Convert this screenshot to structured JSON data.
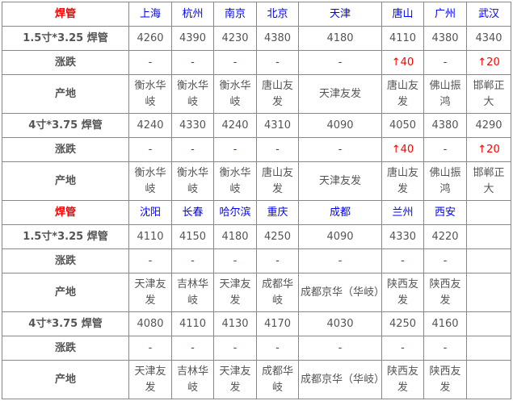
{
  "sections": [
    {
      "header": {
        "label": "焊管",
        "cities": [
          "上海",
          "杭州",
          "南京",
          "北京",
          "天津",
          "唐山",
          "广州",
          "武汉"
        ]
      },
      "rows": [
        {
          "label": "1.5寸*3.25 焊管",
          "type": "price",
          "values": [
            "4260",
            "4390",
            "4230",
            "4380",
            "4180",
            "4110",
            "4380",
            "4340"
          ]
        },
        {
          "label": "涨跌",
          "type": "change",
          "values": [
            "-",
            "-",
            "-",
            "-",
            "-",
            "↑40",
            "-",
            "↑20"
          ]
        },
        {
          "label": "产地",
          "type": "origin",
          "values": [
            "衡水华岐",
            "衡水华岐",
            "衡水华岐",
            "唐山友发",
            "天津友发",
            "唐山友发",
            "佛山振鸿",
            "邯郸正大"
          ]
        },
        {
          "label": "4寸*3.75 焊管",
          "type": "price",
          "values": [
            "4240",
            "4330",
            "4240",
            "4310",
            "4090",
            "4050",
            "4380",
            "4290"
          ]
        },
        {
          "label": "涨跌",
          "type": "change",
          "values": [
            "-",
            "-",
            "-",
            "-",
            "-",
            "↑40",
            "-",
            "↑20"
          ]
        },
        {
          "label": "产地",
          "type": "origin",
          "values": [
            "衡水华岐",
            "衡水华岐",
            "衡水华岐",
            "唐山友发",
            "天津友发",
            "唐山友发",
            "佛山振鸿",
            "邯郸正大"
          ]
        }
      ]
    },
    {
      "header": {
        "label": "焊管",
        "cities": [
          "沈阳",
          "长春",
          "哈尔滨",
          "重庆",
          "成都",
          "兰州",
          "西安",
          ""
        ]
      },
      "rows": [
        {
          "label": "1.5寸*3.25 焊管",
          "type": "price",
          "values": [
            "4110",
            "4150",
            "4180",
            "4250",
            "4090",
            "4330",
            "4220",
            ""
          ]
        },
        {
          "label": "涨跌",
          "type": "change",
          "values": [
            "-",
            "-",
            "-",
            "-",
            "-",
            "-",
            "-",
            ""
          ]
        },
        {
          "label": "产地",
          "type": "origin",
          "values": [
            "天津友发",
            "吉林华岐",
            "天津友发",
            "成都华岐",
            "成都京华（华岐）",
            "陕西友发",
            "陕西友发",
            ""
          ]
        },
        {
          "label": "4寸*3.75 焊管",
          "type": "price",
          "values": [
            "4080",
            "4110",
            "4130",
            "4170",
            "4030",
            "4250",
            "4160",
            ""
          ]
        },
        {
          "label": "涨跌",
          "type": "change",
          "values": [
            "-",
            "-",
            "-",
            "-",
            "-",
            "-",
            "-",
            ""
          ]
        },
        {
          "label": "产地",
          "type": "origin",
          "values": [
            "天津友发",
            "吉林华岐",
            "天津友发",
            "成都华岐",
            "成都京华（华岐）",
            "陕西友发",
            "陕西友发",
            ""
          ]
        }
      ]
    }
  ],
  "colors": {
    "header_label": "#ff0000",
    "city": "#0000ff",
    "up": "#ff0000",
    "flat": "#007700",
    "text": "#555555"
  }
}
